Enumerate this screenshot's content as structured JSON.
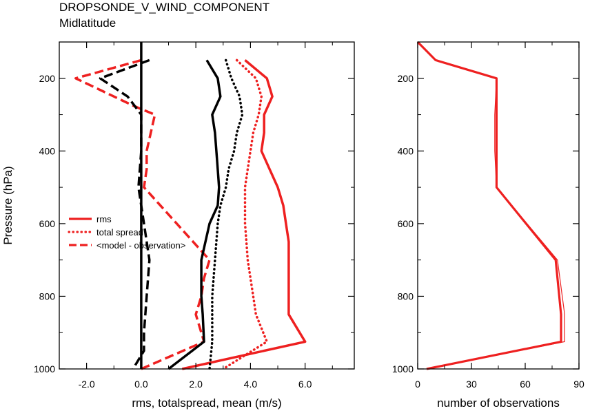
{
  "title": "DROPSONDE_V_WIND_COMPONENT",
  "subtitle": "Midlatitude",
  "chart_data": [
    {
      "type": "line",
      "orientation": "vertical-profile",
      "xlabel": "rms, totalspread, mean (m/s)",
      "ylabel": "Pressure (hPa)",
      "xlim": [
        -3.0,
        7.8
      ],
      "ylim": [
        1000,
        100
      ],
      "x_ticks": [
        -2.0,
        0.0,
        2.0,
        4.0,
        6.0
      ],
      "x_tick_labels": [
        "-2.0",
        "0.0",
        "2.0",
        "4.0",
        "6.0"
      ],
      "y_ticks": [
        200,
        400,
        600,
        800,
        1000
      ],
      "y_tick_labels": [
        "200",
        "400",
        "600",
        "800",
        "1000"
      ],
      "legend": {
        "placement": "left-middle",
        "entries": [
          {
            "label": "rms",
            "style": "solid"
          },
          {
            "label": "total spread",
            "style": "dotted"
          },
          {
            "label": "<model - observation>",
            "style": "dashed"
          }
        ]
      },
      "series": [
        {
          "name": "rms",
          "key": "rms_red",
          "color": "#ee2020",
          "style": "solid",
          "width": 3.5,
          "points": [
            [
              3.8,
              150
            ],
            [
              4.6,
              200
            ],
            [
              4.8,
              250
            ],
            [
              4.5,
              300
            ],
            [
              4.5,
              350
            ],
            [
              4.4,
              400
            ],
            [
              4.7,
              450
            ],
            [
              5.0,
              500
            ],
            [
              5.2,
              550
            ],
            [
              5.3,
              600
            ],
            [
              5.4,
              650
            ],
            [
              5.4,
              700
            ],
            [
              5.4,
              750
            ],
            [
              5.4,
              800
            ],
            [
              5.4,
              850
            ],
            [
              6.0,
              925
            ],
            [
              1.5,
              1000
            ]
          ]
        },
        {
          "name": "total spread",
          "key": "spread_red",
          "color": "#ee2020",
          "style": "dotted",
          "width": 3.5,
          "points": [
            [
              3.5,
              150
            ],
            [
              4.2,
              200
            ],
            [
              4.4,
              250
            ],
            [
              4.3,
              300
            ],
            [
              4.1,
              350
            ],
            [
              4.0,
              400
            ],
            [
              3.9,
              450
            ],
            [
              3.8,
              500
            ],
            [
              3.8,
              550
            ],
            [
              3.8,
              600
            ],
            [
              3.85,
              650
            ],
            [
              3.9,
              700
            ],
            [
              4.0,
              750
            ],
            [
              4.1,
              800
            ],
            [
              4.2,
              850
            ],
            [
              4.6,
              925
            ],
            [
              3.0,
              1000
            ]
          ]
        },
        {
          "name": "<model - observation>",
          "key": "bias_red",
          "color": "#ee2020",
          "style": "dashed",
          "width": 3.5,
          "points": [
            [
              0.0,
              150
            ],
            [
              -2.4,
              200
            ],
            [
              -0.3,
              275
            ],
            [
              0.5,
              300
            ],
            [
              0.2,
              400
            ],
            [
              0.2,
              450
            ],
            [
              0.1,
              500
            ],
            [
              2.5,
              700
            ],
            [
              2.3,
              750
            ],
            [
              2.2,
              800
            ],
            [
              2.0,
              850
            ],
            [
              2.3,
              925
            ],
            [
              0.0,
              1000
            ]
          ]
        },
        {
          "key": "rms_black",
          "color": "#000000",
          "style": "solid",
          "width": 3.5,
          "points": [
            [
              2.4,
              150
            ],
            [
              2.8,
              200
            ],
            [
              2.9,
              250
            ],
            [
              2.6,
              300
            ],
            [
              2.7,
              350
            ],
            [
              2.75,
              400
            ],
            [
              2.8,
              450
            ],
            [
              2.85,
              500
            ],
            [
              2.8,
              550
            ],
            [
              2.5,
              600
            ],
            [
              2.2,
              700
            ],
            [
              2.2,
              750
            ],
            [
              2.2,
              800
            ],
            [
              2.25,
              850
            ],
            [
              2.3,
              925
            ],
            [
              1.0,
              1000
            ]
          ]
        },
        {
          "key": "spread_black",
          "color": "#000000",
          "style": "dotted",
          "width": 3.5,
          "points": [
            [
              3.1,
              150
            ],
            [
              3.3,
              200
            ],
            [
              3.6,
              250
            ],
            [
              3.7,
              300
            ],
            [
              3.5,
              350
            ],
            [
              3.4,
              400
            ],
            [
              3.2,
              450
            ],
            [
              3.1,
              500
            ],
            [
              2.9,
              550
            ],
            [
              2.8,
              600
            ],
            [
              2.7,
              700
            ],
            [
              2.6,
              800
            ],
            [
              2.6,
              925
            ],
            [
              2.5,
              1000
            ]
          ]
        },
        {
          "key": "bias_black",
          "color": "#000000",
          "style": "dashed",
          "width": 3.5,
          "points": [
            [
              0.3,
              150
            ],
            [
              -1.5,
              200
            ],
            [
              -0.5,
              250
            ],
            [
              0.0,
              300
            ],
            [
              0.0,
              400
            ],
            [
              -0.1,
              500
            ],
            [
              0.1,
              600
            ],
            [
              0.3,
              700
            ],
            [
              0.2,
              800
            ],
            [
              0.1,
              900
            ],
            [
              0.1,
              950
            ],
            [
              -0.3,
              1000
            ]
          ]
        },
        {
          "key": "zero_line",
          "color": "#000000",
          "style": "solid",
          "width": 3.5,
          "points": [
            [
              0.0,
              100
            ],
            [
              0.0,
              1000
            ]
          ]
        }
      ]
    },
    {
      "type": "line",
      "orientation": "vertical-profile",
      "xlabel": "number of observations",
      "xlim": [
        0,
        90
      ],
      "ylim": [
        1000,
        100
      ],
      "x_ticks": [
        0,
        30,
        60,
        90
      ],
      "x_tick_labels": [
        "0",
        "30",
        "60",
        "90"
      ],
      "y_ticks": [
        200,
        400,
        600,
        800,
        1000
      ],
      "y_tick_labels": [
        "200",
        "400",
        "600",
        "800",
        "1000"
      ],
      "series": [
        {
          "key": "nobs_thin",
          "color": "#ee2020",
          "style": "solid",
          "width": 1.2,
          "points": [
            [
              0,
              100
            ],
            [
              10,
              150
            ],
            [
              44,
              200
            ],
            [
              43,
              300
            ],
            [
              43,
              400
            ],
            [
              44,
              500
            ],
            [
              78,
              700
            ],
            [
              82,
              850
            ],
            [
              82,
              925
            ],
            [
              5,
              1000
            ]
          ]
        },
        {
          "key": "nobs_thick",
          "color": "#ee2020",
          "style": "solid",
          "width": 3.2,
          "points": [
            [
              0,
              100
            ],
            [
              10,
              150
            ],
            [
              44,
              200
            ],
            [
              44,
              300
            ],
            [
              44,
              400
            ],
            [
              44,
              500
            ],
            [
              77,
              700
            ],
            [
              80,
              850
            ],
            [
              80,
              925
            ],
            [
              5,
              1000
            ]
          ]
        }
      ]
    }
  ]
}
